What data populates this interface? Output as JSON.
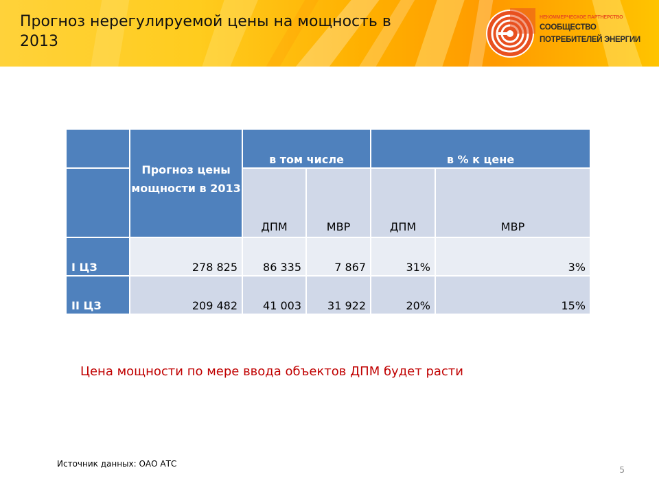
{
  "header": {
    "title": "Прогноз нерегулируемой цены на мощность в 2013"
  },
  "logo": {
    "org_type": "НЕКОММЕРЧЕСКОЕ ПАРТНЕРСТВО",
    "name_line1": "СООБЩЕСТВО",
    "name_line2": "ПОТРЕБИТЕЛЕЙ ЭНЕРГИИ"
  },
  "table": {
    "header_forecast": "Прогноз цены мощности в 2013",
    "header_including": "в том числе",
    "header_percent": "в % к цене",
    "subheaders": [
      "ДПМ",
      "МВР",
      "ДПМ",
      "МВР"
    ],
    "rows": [
      {
        "label": "I ЦЗ",
        "forecast": "278 825",
        "dpm": "86 335",
        "mvr": "7 867",
        "dpm_pct": "31%",
        "mvr_pct": "3%"
      },
      {
        "label": "II ЦЗ",
        "forecast": "209 482",
        "dpm": "41 003",
        "mvr": "31 922",
        "dpm_pct": "20%",
        "mvr_pct": "15%"
      }
    ]
  },
  "note": "Цена мощности по мере ввода объектов ДПМ  будет расти",
  "source": "Источник данных: ОАО АТС",
  "page_number": "5",
  "colors": {
    "header_accent": "#4f81bd",
    "row_light": "#e9edf4",
    "row_dark": "#d0d8e8",
    "note": "#c00000",
    "logo_orange": "#e8501f"
  }
}
